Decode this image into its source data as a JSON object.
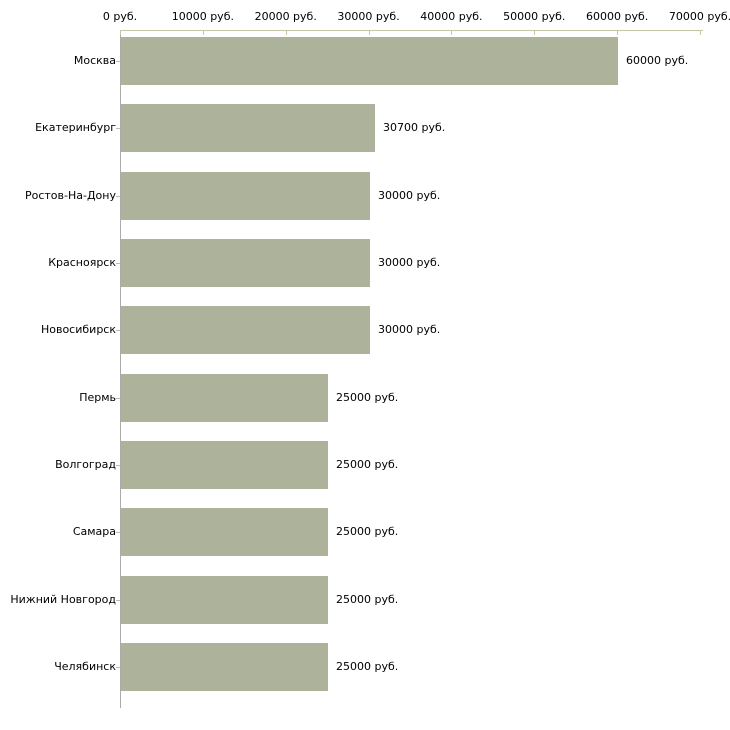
{
  "chart_data": {
    "type": "bar",
    "orientation": "horizontal",
    "title": "",
    "xlabel": "",
    "ylabel": "",
    "xlim": [
      0,
      70000
    ],
    "grid": false,
    "legend": false,
    "categories": [
      "Москва",
      "Екатеринбург",
      "Ростов-На-Дону",
      "Красноярск",
      "Новосибирск",
      "Пермь",
      "Волгоград",
      "Самара",
      "Нижний Новгород",
      "Челябинск"
    ],
    "values": [
      60000,
      30700,
      30000,
      30000,
      30000,
      25000,
      25000,
      25000,
      25000,
      25000
    ],
    "value_labels": [
      "60000 руб.",
      "30700 руб.",
      "30000 руб.",
      "30000 руб.",
      "30000 руб.",
      "25000 руб.",
      "25000 руб.",
      "25000 руб.",
      "25000 руб.",
      "25000 руб."
    ],
    "x_tick_values": [
      0,
      10000,
      20000,
      30000,
      40000,
      50000,
      60000,
      70000
    ],
    "x_tick_labels": [
      "0 руб.",
      "10000 руб.",
      "20000 руб.",
      "30000 руб.",
      "40000 руб.",
      "50000 руб.",
      "60000 руб.",
      "70000 руб."
    ],
    "colors": {
      "bar_fill": "#adb39b",
      "x_axis_line": "#c6c6a4",
      "x_tick_mark": "#c6c6a4",
      "y_axis_line": "#ababab",
      "category_tick": "#bdbdad",
      "text": "#000000",
      "background": "#ffffff"
    }
  }
}
